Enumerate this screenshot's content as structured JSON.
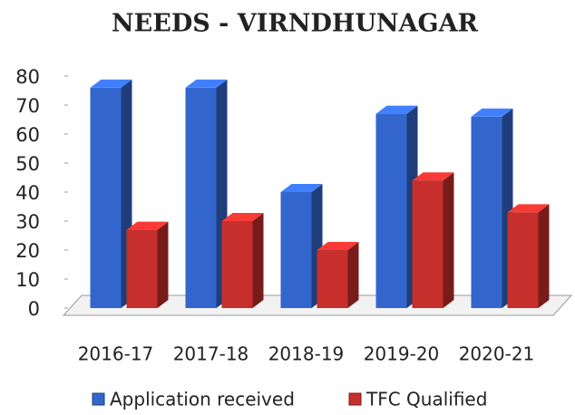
{
  "chart_data": {
    "type": "bar3d",
    "title": "NEEDS - VIRNDHUNAGAR",
    "categories": [
      "2016-17",
      "2017-18",
      "2018-19",
      "2019-20",
      "2020-21"
    ],
    "series": [
      {
        "name": "Application received",
        "color": "#3366cc",
        "values": [
          76,
          76,
          40,
          67,
          66
        ]
      },
      {
        "name": "TFC Qualified",
        "color": "#c62f2b",
        "values": [
          27,
          30,
          20,
          44,
          33
        ]
      }
    ],
    "ylim": [
      0,
      80
    ],
    "yticks": [
      0,
      10,
      20,
      30,
      40,
      50,
      60,
      70,
      80
    ],
    "legend": "bottom"
  }
}
